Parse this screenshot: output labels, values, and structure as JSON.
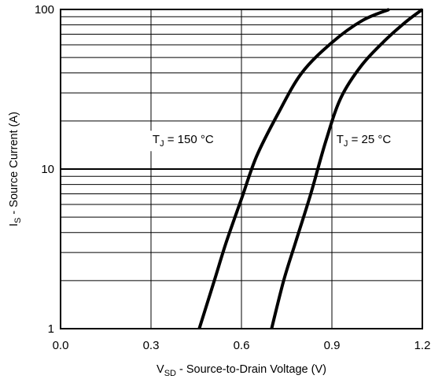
{
  "chart_data": {
    "type": "line",
    "x_scale": "linear",
    "y_scale": "log",
    "xlim": [
      0.0,
      1.2
    ],
    "ylim": [
      1,
      100
    ],
    "x_ticks": [
      "0.0",
      "0.3",
      "0.6",
      "0.9",
      "1.2"
    ],
    "y_ticks": [
      "1",
      "10",
      "100"
    ],
    "grid": true,
    "xlabel": {
      "main": "V",
      "sub": "SD",
      "rest": " - Source-to-Drain Voltage (V)"
    },
    "ylabel": {
      "main": "I",
      "sub": "S",
      "rest": " - Source Current (A)"
    },
    "series": [
      {
        "label_main": "T",
        "label_sub": "J",
        "label_rest": " = 150 °C",
        "points": [
          [
            0.46,
            1
          ],
          [
            0.51,
            2
          ],
          [
            0.55,
            3.5
          ],
          [
            0.6,
            6.5
          ],
          [
            0.65,
            12
          ],
          [
            0.72,
            22
          ],
          [
            0.8,
            40
          ],
          [
            0.9,
            62
          ],
          [
            1.0,
            85
          ],
          [
            1.09,
            100
          ]
        ]
      },
      {
        "label_main": "T",
        "label_sub": "J",
        "label_rest": " = 25 °C",
        "points": [
          [
            0.7,
            1
          ],
          [
            0.74,
            2
          ],
          [
            0.78,
            3.5
          ],
          [
            0.83,
            7
          ],
          [
            0.88,
            15
          ],
          [
            0.93,
            28
          ],
          [
            1.0,
            45
          ],
          [
            1.08,
            65
          ],
          [
            1.15,
            85
          ],
          [
            1.2,
            100
          ]
        ]
      }
    ],
    "line_color": "#000000"
  }
}
